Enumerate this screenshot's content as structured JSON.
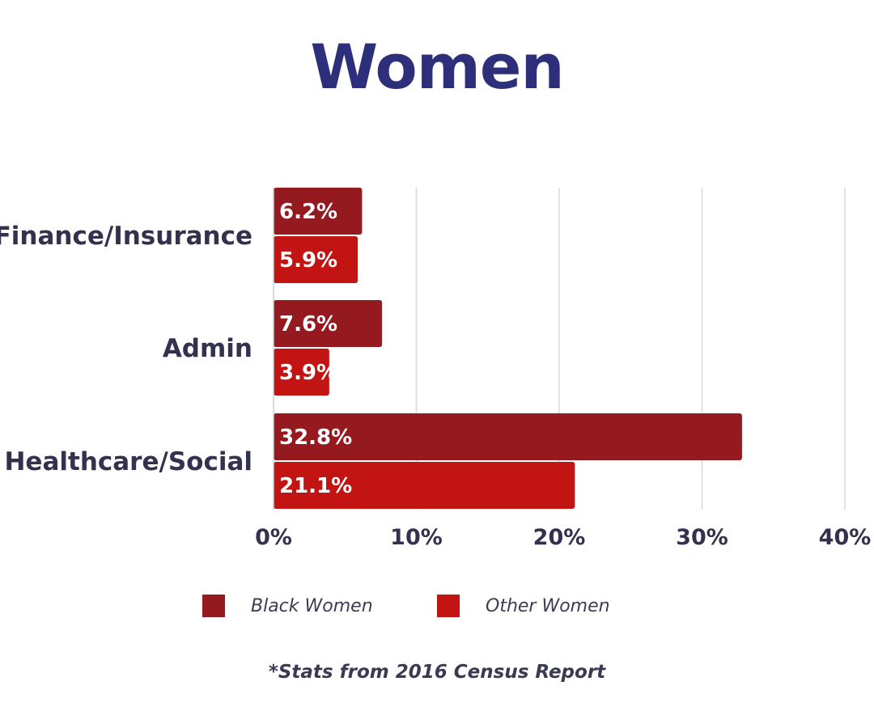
{
  "chart_data": {
    "type": "bar",
    "orientation": "horizontal",
    "title": "Women",
    "categories": [
      "Finance/Insurance",
      "Admin",
      "Healthcare/Social"
    ],
    "series": [
      {
        "name": "Black Women",
        "values": [
          6.2,
          7.6,
          32.8
        ],
        "labels": [
          "6.2%",
          "7.6%",
          "32.8%"
        ],
        "color": "#941a20"
      },
      {
        "name": "Other Women",
        "values": [
          5.9,
          3.9,
          21.1
        ],
        "labels": [
          "5.9%",
          "3.9%",
          "21.1%"
        ],
        "color": "#c31414"
      }
    ],
    "xlim": [
      0,
      40
    ],
    "xticks": [
      "0%",
      "10%",
      "20%",
      "30%",
      "40%"
    ],
    "grid": true,
    "legend_position": "bottom"
  },
  "footnote": "*Stats from 2016 Census Report"
}
